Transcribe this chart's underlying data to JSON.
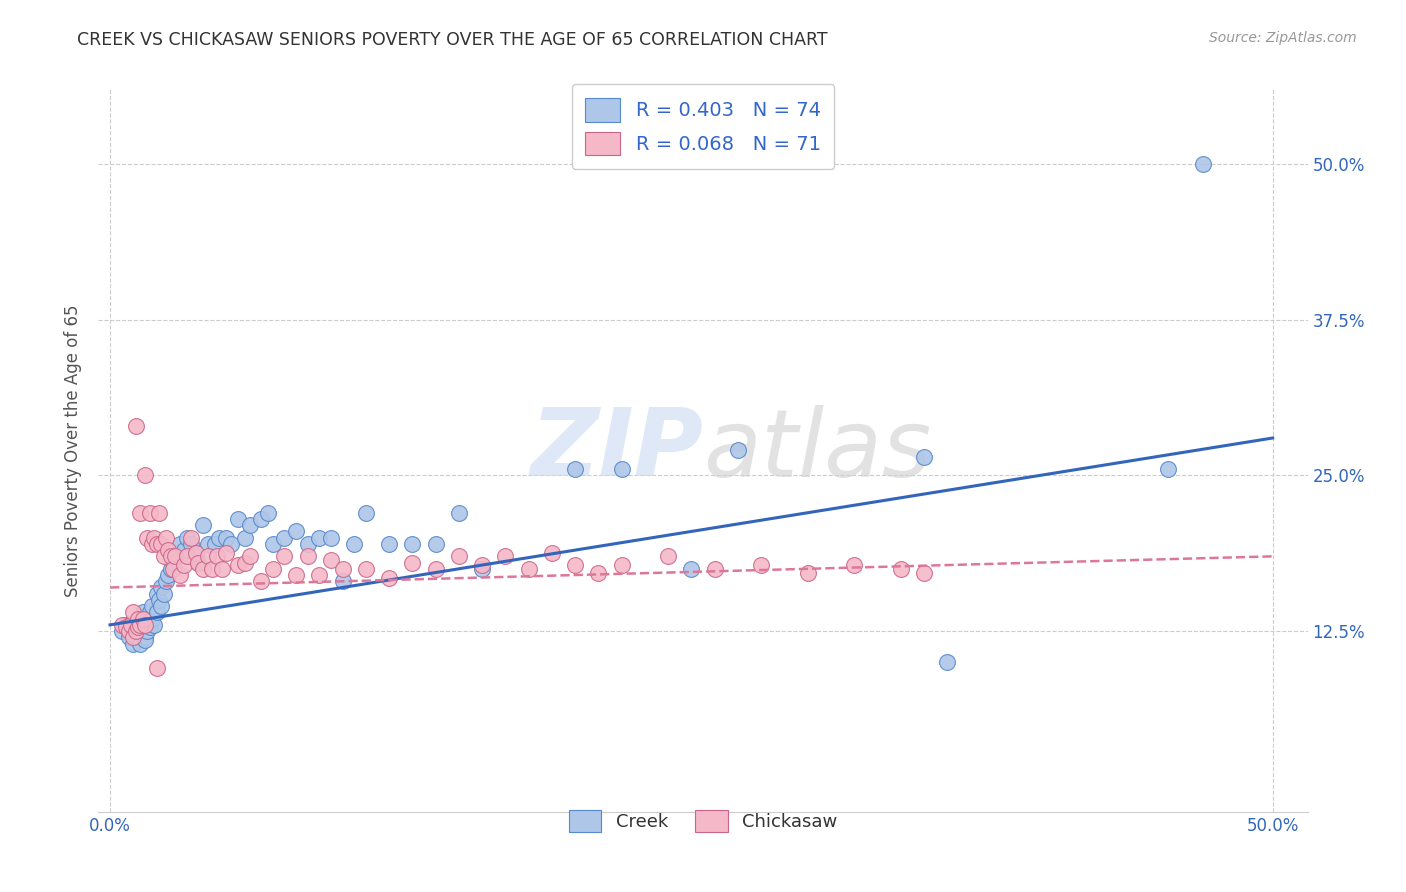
{
  "title": "CREEK VS CHICKASAW SENIORS POVERTY OVER THE AGE OF 65 CORRELATION CHART",
  "source": "Source: ZipAtlas.com",
  "ylabel": "Seniors Poverty Over the Age of 65",
  "xlim": [
    -0.005,
    0.515
  ],
  "ylim": [
    -0.02,
    0.56
  ],
  "xtick_labels": [
    "0.0%",
    "50.0%"
  ],
  "xtick_values": [
    0.0,
    0.5
  ],
  "ytick_labels": [
    "12.5%",
    "25.0%",
    "37.5%",
    "50.0%"
  ],
  "ytick_values": [
    0.125,
    0.25,
    0.375,
    0.5
  ],
  "creek_color": "#aec6e8",
  "creek_edge": "#5588cc",
  "chickasaw_color": "#f4b8c8",
  "chickasaw_edge": "#cc6688",
  "creek_line_color": "#3366bb",
  "chickasaw_line_color": "#dd7799",
  "creek_R": 0.403,
  "creek_N": 74,
  "chickasaw_R": 0.068,
  "chickasaw_N": 71,
  "watermark_zip": "ZIP",
  "watermark_atlas": "atlas",
  "background_color": "#ffffff",
  "grid_color": "#cccccc",
  "legend_text_color": "#3366cc",
  "title_color": "#333333",
  "source_color": "#999999",
  "ylabel_color": "#555555",
  "creek_scatter_x": [
    0.005,
    0.007,
    0.008,
    0.009,
    0.01,
    0.01,
    0.011,
    0.011,
    0.012,
    0.012,
    0.013,
    0.013,
    0.014,
    0.014,
    0.015,
    0.015,
    0.015,
    0.016,
    0.016,
    0.017,
    0.017,
    0.018,
    0.018,
    0.019,
    0.02,
    0.02,
    0.021,
    0.022,
    0.022,
    0.023,
    0.024,
    0.025,
    0.026,
    0.027,
    0.028,
    0.03,
    0.032,
    0.033,
    0.035,
    0.037,
    0.038,
    0.04,
    0.042,
    0.045,
    0.047,
    0.05,
    0.052,
    0.055,
    0.058,
    0.06,
    0.065,
    0.068,
    0.07,
    0.075,
    0.08,
    0.085,
    0.09,
    0.095,
    0.1,
    0.105,
    0.11,
    0.12,
    0.13,
    0.14,
    0.15,
    0.16,
    0.2,
    0.22,
    0.25,
    0.27,
    0.35,
    0.36,
    0.455,
    0.47
  ],
  "creek_scatter_y": [
    0.125,
    0.13,
    0.12,
    0.125,
    0.13,
    0.115,
    0.125,
    0.12,
    0.135,
    0.128,
    0.13,
    0.115,
    0.125,
    0.14,
    0.12,
    0.13,
    0.118,
    0.125,
    0.135,
    0.14,
    0.128,
    0.135,
    0.145,
    0.13,
    0.155,
    0.14,
    0.15,
    0.16,
    0.145,
    0.155,
    0.165,
    0.17,
    0.175,
    0.18,
    0.185,
    0.195,
    0.19,
    0.2,
    0.195,
    0.185,
    0.18,
    0.21,
    0.195,
    0.195,
    0.2,
    0.2,
    0.195,
    0.215,
    0.2,
    0.21,
    0.215,
    0.22,
    0.195,
    0.2,
    0.205,
    0.195,
    0.2,
    0.2,
    0.165,
    0.195,
    0.22,
    0.195,
    0.195,
    0.195,
    0.22,
    0.175,
    0.255,
    0.255,
    0.175,
    0.27,
    0.265,
    0.1,
    0.255,
    0.5
  ],
  "chickasaw_scatter_x": [
    0.005,
    0.007,
    0.008,
    0.009,
    0.01,
    0.01,
    0.011,
    0.011,
    0.012,
    0.012,
    0.013,
    0.013,
    0.014,
    0.015,
    0.015,
    0.016,
    0.017,
    0.018,
    0.019,
    0.02,
    0.021,
    0.022,
    0.023,
    0.024,
    0.025,
    0.026,
    0.027,
    0.028,
    0.03,
    0.032,
    0.033,
    0.035,
    0.037,
    0.038,
    0.04,
    0.042,
    0.044,
    0.046,
    0.048,
    0.05,
    0.055,
    0.058,
    0.06,
    0.065,
    0.07,
    0.075,
    0.08,
    0.085,
    0.09,
    0.095,
    0.1,
    0.11,
    0.12,
    0.13,
    0.14,
    0.15,
    0.16,
    0.17,
    0.18,
    0.19,
    0.2,
    0.21,
    0.22,
    0.24,
    0.26,
    0.28,
    0.3,
    0.32,
    0.34,
    0.35,
    0.02
  ],
  "chickasaw_scatter_y": [
    0.13,
    0.128,
    0.125,
    0.13,
    0.12,
    0.14,
    0.29,
    0.125,
    0.135,
    0.128,
    0.22,
    0.13,
    0.135,
    0.25,
    0.13,
    0.2,
    0.22,
    0.195,
    0.2,
    0.195,
    0.22,
    0.195,
    0.185,
    0.2,
    0.19,
    0.185,
    0.175,
    0.185,
    0.17,
    0.178,
    0.185,
    0.2,
    0.188,
    0.18,
    0.175,
    0.185,
    0.175,
    0.185,
    0.175,
    0.188,
    0.178,
    0.18,
    0.185,
    0.165,
    0.175,
    0.185,
    0.17,
    0.185,
    0.17,
    0.182,
    0.175,
    0.175,
    0.168,
    0.18,
    0.175,
    0.185,
    0.178,
    0.185,
    0.175,
    0.188,
    0.178,
    0.172,
    0.178,
    0.185,
    0.175,
    0.178,
    0.172,
    0.178,
    0.175,
    0.172,
    0.095
  ],
  "creek_line_x0": 0.0,
  "creek_line_x1": 0.5,
  "creek_line_y0": 0.13,
  "creek_line_y1": 0.28,
  "chick_line_x0": 0.0,
  "chick_line_x1": 0.5,
  "chick_line_y0": 0.16,
  "chick_line_y1": 0.185
}
